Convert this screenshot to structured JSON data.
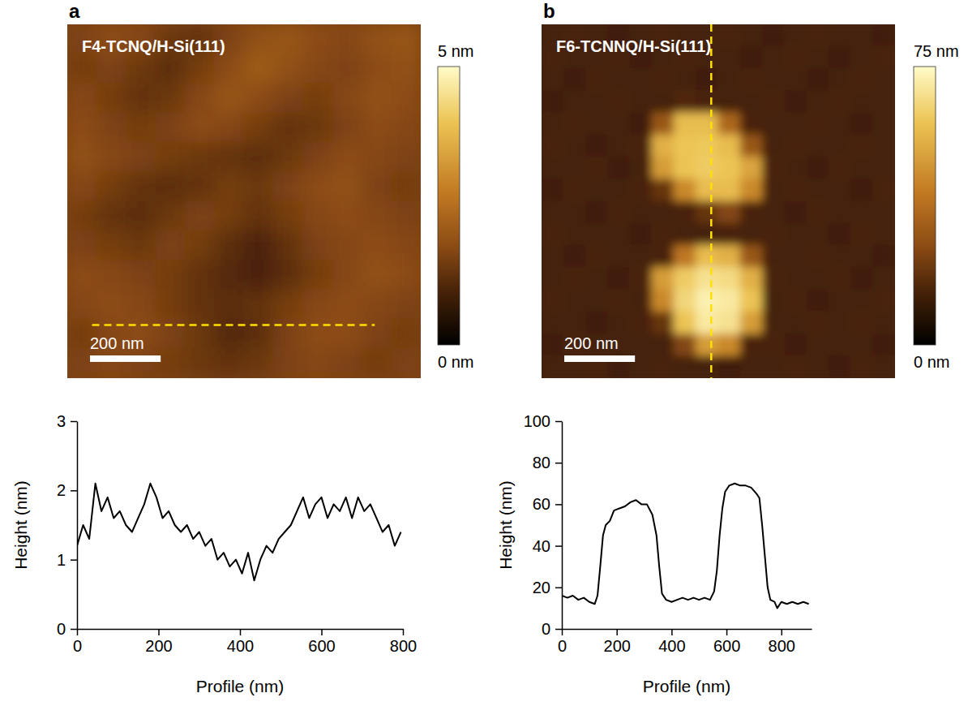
{
  "chart_data": [
    {
      "type": "heatmap",
      "panel": "a",
      "title": "F4-TCNQ/H-Si(111)",
      "xlim": [
        0,
        1000
      ],
      "ylim": [
        0,
        1000
      ],
      "tick_labels": false,
      "cells": [
        [
          1.6,
          1.8,
          1.7,
          1.4,
          1.3,
          1.6,
          1.9,
          2.0,
          1.8,
          1.7,
          1.9,
          2.0
        ],
        [
          1.5,
          1.6,
          1.4,
          1.2,
          1.5,
          1.8,
          2.1,
          1.9,
          1.7,
          1.6,
          1.8,
          1.9
        ],
        [
          1.7,
          1.5,
          1.3,
          1.4,
          1.7,
          2.0,
          1.8,
          1.6,
          1.5,
          1.7,
          1.9,
          1.8
        ],
        [
          1.8,
          1.6,
          1.5,
          1.6,
          1.8,
          1.7,
          1.5,
          1.3,
          1.4,
          1.6,
          1.8,
          1.7
        ],
        [
          1.9,
          1.7,
          1.6,
          1.5,
          1.4,
          1.3,
          1.2,
          1.4,
          1.6,
          1.8,
          1.7,
          1.6
        ],
        [
          1.7,
          1.5,
          1.3,
          1.2,
          1.3,
          1.5,
          1.4,
          1.6,
          1.8,
          1.9,
          1.6,
          1.5
        ],
        [
          1.5,
          1.3,
          1.2,
          1.4,
          1.6,
          1.5,
          1.3,
          1.5,
          1.7,
          1.8,
          1.7,
          1.6
        ],
        [
          1.6,
          1.5,
          1.4,
          1.6,
          1.5,
          1.2,
          1.0,
          1.3,
          1.6,
          1.7,
          1.8,
          1.7
        ],
        [
          1.8,
          1.7,
          1.6,
          1.5,
          1.3,
          1.1,
          1.0,
          1.2,
          1.5,
          1.7,
          1.9,
          1.8
        ],
        [
          1.7,
          1.8,
          1.7,
          1.5,
          1.3,
          1.2,
          1.3,
          1.5,
          1.7,
          1.8,
          1.7,
          1.6
        ],
        [
          1.5,
          1.7,
          1.8,
          1.6,
          1.4,
          1.1,
          1.2,
          1.6,
          1.8,
          1.8,
          1.6,
          1.5
        ],
        [
          1.6,
          1.7,
          1.6,
          1.5,
          1.4,
          1.3,
          1.4,
          1.6,
          1.7,
          1.6,
          1.5,
          1.6
        ]
      ],
      "colorbar": {
        "range": [
          0,
          5
        ],
        "ticks": [
          {
            "value": 5,
            "label": "5 nm"
          },
          {
            "value": 0,
            "label": "0 nm"
          }
        ]
      },
      "scale_bar": {
        "value": 200,
        "label": "200 nm"
      },
      "profile_line": {
        "x": [
          70,
          870
        ],
        "y": [
          850,
          850
        ]
      }
    },
    {
      "type": "heatmap",
      "panel": "b",
      "title": "F6-TCNNQ/H-Si(111)",
      "xlim": [
        0,
        1000
      ],
      "ylim": [
        0,
        1000
      ],
      "tick_labels": false,
      "cells": [
        [
          14,
          15,
          14,
          13,
          14,
          15,
          14,
          14,
          15,
          14,
          13,
          14,
          15,
          14,
          14,
          13
        ],
        [
          15,
          14,
          14,
          15,
          13,
          14,
          15,
          14,
          14,
          13,
          14,
          15,
          14,
          13,
          14,
          15
        ],
        [
          14,
          13,
          15,
          14,
          14,
          15,
          14,
          13,
          14,
          15,
          14,
          14,
          13,
          14,
          15,
          14
        ],
        [
          13,
          14,
          14,
          15,
          14,
          14,
          16,
          15,
          14,
          14,
          15,
          13,
          14,
          15,
          14,
          14
        ],
        [
          14,
          15,
          14,
          14,
          13,
          30,
          58,
          58,
          35,
          15,
          14,
          14,
          15,
          14,
          13,
          14
        ],
        [
          15,
          14,
          13,
          14,
          15,
          55,
          60,
          61,
          58,
          30,
          14,
          15,
          14,
          14,
          15,
          14
        ],
        [
          14,
          14,
          15,
          13,
          14,
          50,
          60,
          62,
          60,
          52,
          15,
          14,
          13,
          15,
          14,
          14
        ],
        [
          13,
          15,
          14,
          14,
          15,
          20,
          45,
          58,
          58,
          45,
          14,
          15,
          14,
          14,
          13,
          15
        ],
        [
          14,
          14,
          13,
          15,
          14,
          14,
          15,
          20,
          25,
          15,
          14,
          13,
          15,
          14,
          14,
          14
        ],
        [
          15,
          14,
          14,
          14,
          13,
          15,
          14,
          14,
          15,
          14,
          15,
          14,
          14,
          13,
          15,
          14
        ],
        [
          14,
          13,
          15,
          14,
          14,
          15,
          40,
          58,
          55,
          30,
          14,
          14,
          15,
          14,
          14,
          13
        ],
        [
          14,
          15,
          14,
          13,
          15,
          50,
          62,
          68,
          66,
          55,
          15,
          14,
          14,
          15,
          13,
          14
        ],
        [
          15,
          14,
          14,
          15,
          14,
          45,
          65,
          72,
          70,
          60,
          14,
          15,
          13,
          14,
          14,
          15
        ],
        [
          14,
          14,
          13,
          14,
          15,
          20,
          60,
          70,
          68,
          50,
          14,
          14,
          15,
          14,
          15,
          14
        ],
        [
          13,
          15,
          14,
          14,
          14,
          14,
          25,
          50,
          45,
          15,
          15,
          13,
          14,
          14,
          14,
          13
        ],
        [
          14,
          14,
          15,
          13,
          14,
          15,
          14,
          14,
          13,
          14,
          14,
          15,
          14,
          13,
          15,
          14
        ]
      ],
      "colorbar": {
        "range": [
          0,
          75
        ],
        "ticks": [
          {
            "value": 75,
            "label": "75 nm"
          },
          {
            "value": 0,
            "label": "0 nm"
          }
        ]
      },
      "scale_bar": {
        "value": 200,
        "label": "200 nm"
      },
      "profile_line": {
        "x": [
          480,
          480
        ],
        "y": [
          0,
          1000
        ]
      }
    },
    {
      "type": "line",
      "x_label": "Profile (nm)",
      "y_label": "Height (nm)",
      "color": "#000000",
      "xlim": [
        0,
        800
      ],
      "ylim": [
        0,
        3
      ],
      "xticks": [
        0,
        200,
        400,
        600,
        800
      ],
      "yticks": [
        0,
        1,
        2,
        3
      ],
      "x": [
        0,
        15,
        30,
        45,
        60,
        75,
        90,
        105,
        120,
        135,
        150,
        165,
        180,
        195,
        210,
        225,
        240,
        255,
        270,
        285,
        300,
        315,
        330,
        345,
        360,
        375,
        390,
        405,
        420,
        435,
        450,
        465,
        480,
        495,
        510,
        525,
        540,
        555,
        570,
        585,
        600,
        615,
        630,
        645,
        660,
        675,
        690,
        705,
        720,
        735,
        750,
        765,
        780,
        795
      ],
      "values": [
        1.2,
        1.5,
        1.3,
        2.1,
        1.7,
        1.9,
        1.6,
        1.7,
        1.5,
        1.4,
        1.6,
        1.8,
        2.1,
        1.9,
        1.6,
        1.7,
        1.5,
        1.4,
        1.5,
        1.3,
        1.4,
        1.2,
        1.3,
        1.0,
        1.1,
        0.9,
        1.0,
        0.8,
        1.1,
        0.7,
        1.0,
        1.2,
        1.1,
        1.3,
        1.4,
        1.5,
        1.7,
        1.9,
        1.6,
        1.8,
        1.9,
        1.6,
        1.8,
        1.7,
        1.9,
        1.6,
        1.9,
        1.7,
        1.8,
        1.6,
        1.4,
        1.5,
        1.2,
        1.4
      ]
    },
    {
      "type": "line",
      "x_label": "Profile (nm)",
      "y_label": "Height (nm)",
      "color": "#000000",
      "xlim": [
        0,
        910
      ],
      "ylim": [
        0,
        100
      ],
      "xticks": [
        0,
        200,
        400,
        600,
        800
      ],
      "yticks": [
        0,
        20,
        40,
        60,
        80,
        100
      ],
      "x": [
        0,
        20,
        40,
        60,
        80,
        100,
        120,
        130,
        140,
        150,
        160,
        175,
        190,
        210,
        230,
        250,
        270,
        290,
        310,
        330,
        345,
        355,
        365,
        380,
        400,
        420,
        440,
        460,
        480,
        500,
        520,
        540,
        555,
        565,
        575,
        585,
        595,
        610,
        630,
        650,
        670,
        690,
        710,
        720,
        730,
        740,
        750,
        760,
        775,
        785,
        800,
        820,
        840,
        860,
        880,
        900
      ],
      "values": [
        16,
        15,
        16,
        14,
        15,
        13,
        12,
        16,
        30,
        45,
        50,
        52,
        57,
        58,
        59,
        61,
        62,
        60,
        60,
        55,
        45,
        30,
        17,
        14,
        13,
        14,
        15,
        14,
        15,
        14,
        15,
        14,
        18,
        28,
        45,
        58,
        66,
        69,
        70,
        69,
        69,
        68,
        65,
        63,
        50,
        35,
        20,
        14,
        13,
        10,
        13,
        12,
        13,
        12,
        13,
        12
      ]
    }
  ]
}
